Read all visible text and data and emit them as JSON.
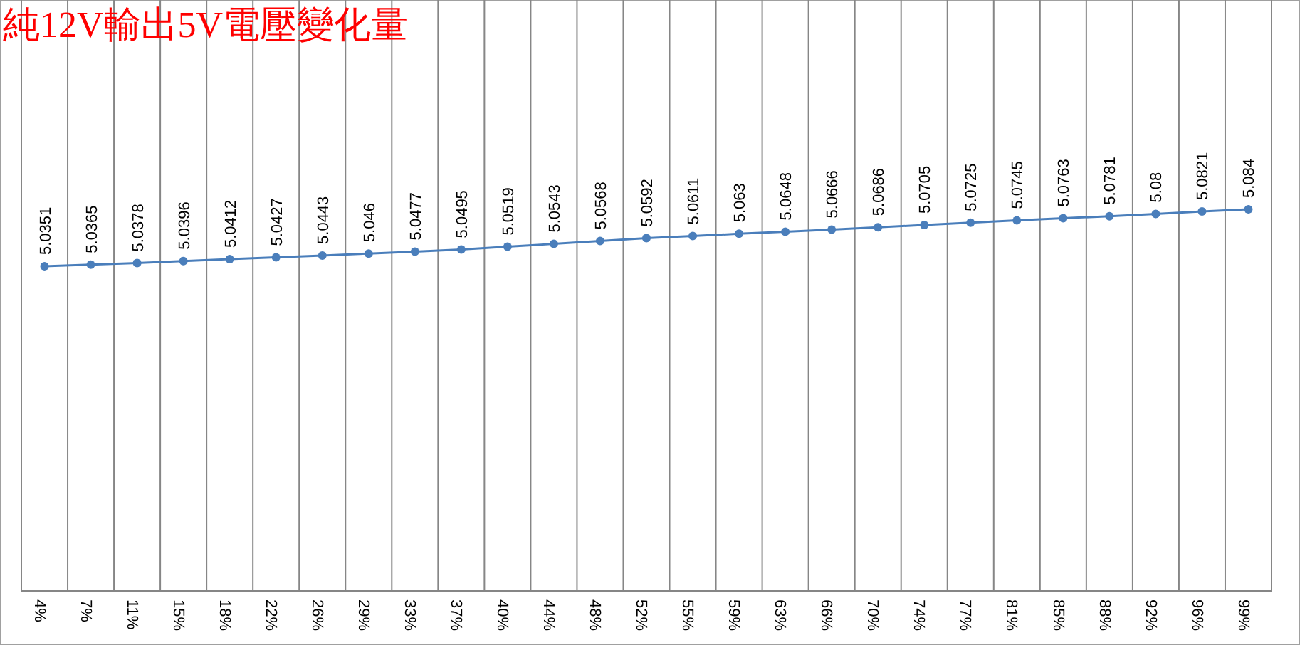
{
  "chart_data": {
    "type": "line",
    "title": "純12V輸出5V電壓變化量",
    "categories": [
      "4%",
      "7%",
      "11%",
      "15%",
      "18%",
      "22%",
      "26%",
      "29%",
      "33%",
      "37%",
      "40%",
      "44%",
      "48%",
      "52%",
      "55%",
      "59%",
      "63%",
      "66%",
      "70%",
      "74%",
      "77%",
      "81%",
      "85%",
      "88%",
      "92%",
      "96%",
      "99%"
    ],
    "series": [
      {
        "color": "#4a7ebb",
        "values": [
          5.0351,
          5.0365,
          5.0378,
          5.0396,
          5.0412,
          5.0427,
          5.0443,
          5.046,
          5.0477,
          5.0495,
          5.0519,
          5.0543,
          5.0568,
          5.0592,
          5.0611,
          5.063,
          5.0648,
          5.0666,
          5.0686,
          5.0705,
          5.0725,
          5.0745,
          5.0763,
          5.0781,
          5.08,
          5.0821,
          5.084
        ]
      }
    ],
    "data_labels": true,
    "grid": "x",
    "marker": "circle",
    "line_style": "solid"
  }
}
